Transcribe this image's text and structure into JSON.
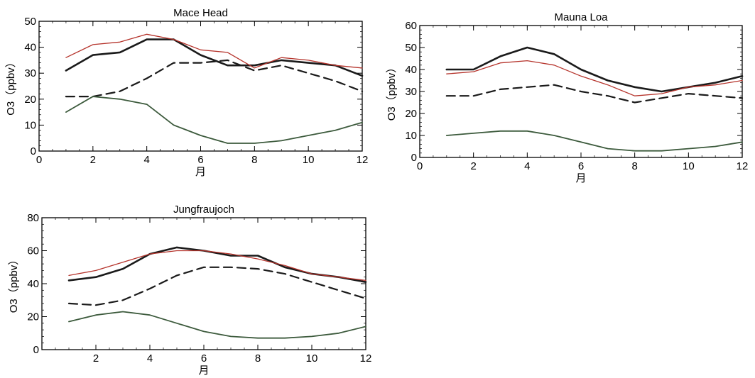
{
  "chart_data": [
    {
      "type": "line",
      "title": "Mace Head",
      "xlabel": "月",
      "ylabel": "O3（ppbv）",
      "xlim": [
        0,
        12
      ],
      "ylim": [
        0,
        50
      ],
      "xticks": [
        0,
        2,
        4,
        6,
        8,
        10,
        12
      ],
      "yticks": [
        0,
        10,
        20,
        30,
        40,
        50
      ],
      "x": [
        1,
        2,
        3,
        4,
        5,
        6,
        7,
        8,
        9,
        10,
        11,
        12
      ],
      "series": [
        {
          "style": "solid-thick",
          "color": "#1a1a1a",
          "values": [
            31,
            37,
            38,
            43,
            43,
            37,
            33,
            33,
            35,
            34,
            33,
            29
          ]
        },
        {
          "style": "solid-thin",
          "color": "#b5332b",
          "values": [
            36,
            41,
            42,
            45,
            43,
            39,
            38,
            32,
            36,
            35,
            33,
            32
          ]
        },
        {
          "style": "dashed",
          "color": "#1a1a1a",
          "values": [
            21,
            21,
            23,
            28,
            34,
            34,
            35,
            31,
            33,
            30,
            27,
            23
          ]
        },
        {
          "style": "solid-green",
          "color": "#3c5a3c",
          "values": [
            15,
            21,
            20,
            18,
            10,
            6,
            3,
            3,
            4,
            6,
            8,
            11
          ]
        }
      ]
    },
    {
      "type": "line",
      "title": "Mauna Loa",
      "xlabel": "月",
      "ylabel": "O3（ppbv）",
      "xlim": [
        0,
        12
      ],
      "ylim": [
        0,
        60
      ],
      "xticks": [
        0,
        2,
        4,
        6,
        8,
        10,
        12
      ],
      "yticks": [
        0,
        10,
        20,
        30,
        40,
        50,
        60
      ],
      "x": [
        1,
        2,
        3,
        4,
        5,
        6,
        7,
        8,
        9,
        10,
        11,
        12
      ],
      "series": [
        {
          "style": "solid-thick",
          "color": "#1a1a1a",
          "values": [
            40,
            40,
            46,
            50,
            47,
            40,
            35,
            32,
            30,
            32,
            34,
            37
          ]
        },
        {
          "style": "solid-thin",
          "color": "#b5332b",
          "values": [
            38,
            39,
            43,
            44,
            42,
            37,
            33,
            28,
            29,
            32,
            33,
            35
          ]
        },
        {
          "style": "dashed",
          "color": "#1a1a1a",
          "values": [
            28,
            28,
            31,
            32,
            33,
            30,
            28,
            25,
            27,
            29,
            28,
            27
          ]
        },
        {
          "style": "solid-green",
          "color": "#3c5a3c",
          "values": [
            10,
            11,
            12,
            12,
            10,
            7,
            4,
            3,
            3,
            4,
            5,
            7
          ]
        }
      ]
    },
    {
      "type": "line",
      "title": "Jungfraujoch",
      "xlabel": "月",
      "ylabel": "O3（ppbv）",
      "xlim": [
        0,
        12
      ],
      "ylim": [
        0,
        80
      ],
      "xticks": [
        2,
        4,
        6,
        8,
        10,
        12
      ],
      "yticks": [
        0,
        20,
        40,
        60,
        80
      ],
      "x": [
        1,
        2,
        3,
        4,
        5,
        6,
        7,
        8,
        9,
        10,
        11,
        12
      ],
      "series": [
        {
          "style": "solid-thick",
          "color": "#1a1a1a",
          "values": [
            42,
            44,
            49,
            58,
            62,
            60,
            57,
            57,
            50,
            46,
            44,
            41
          ]
        },
        {
          "style": "solid-thin",
          "color": "#b5332b",
          "values": [
            45,
            48,
            53,
            58,
            60,
            60,
            58,
            55,
            51,
            46,
            44,
            42
          ]
        },
        {
          "style": "dashed",
          "color": "#1a1a1a",
          "values": [
            28,
            27,
            30,
            37,
            45,
            50,
            50,
            49,
            46,
            41,
            36,
            31
          ]
        },
        {
          "style": "solid-green",
          "color": "#3c5a3c",
          "values": [
            17,
            21,
            23,
            21,
            16,
            11,
            8,
            7,
            7,
            8,
            10,
            14
          ]
        }
      ]
    }
  ]
}
